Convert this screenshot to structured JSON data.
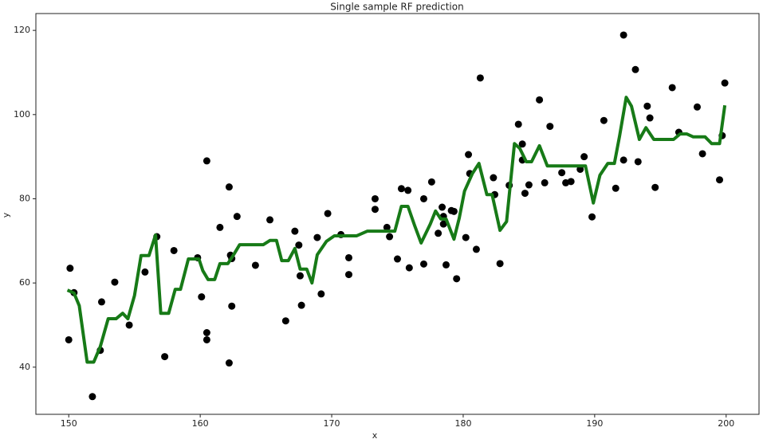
{
  "chart_data": {
    "type": "scatter",
    "title": "Single sample RF prediction",
    "x_label": "x",
    "y_label": "y",
    "xlim": [
      147.5,
      202.5
    ],
    "ylim": [
      28.8,
      124
    ],
    "xticks": [
      150,
      160,
      170,
      180,
      190,
      200
    ],
    "yticks": [
      40,
      60,
      80,
      100,
      120
    ],
    "grid": false,
    "series": [
      {
        "type": "scatter",
        "color": "#000000",
        "x": [
          150.1,
          150.0,
          150.4,
          151.8,
          152.5,
          152.4,
          153.5,
          154.6,
          155.8,
          156.7,
          157.3,
          158.0,
          159.8,
          160.1,
          160.5,
          160.5,
          160.5,
          161.5,
          162.2,
          162.3,
          162.4,
          162.4,
          162.2,
          162.8,
          164.2,
          165.3,
          166.5,
          167.2,
          167.5,
          167.6,
          167.7,
          168.9,
          169.2,
          169.7,
          170.7,
          171.3,
          171.3,
          173.3,
          173.3,
          174.2,
          174.4,
          175.0,
          175.3,
          175.8,
          175.9,
          177.0,
          177.0,
          177.6,
          178.1,
          178.4,
          178.5,
          178.5,
          178.7,
          179.1,
          179.3,
          179.5,
          180.2,
          180.4,
          180.5,
          181.0,
          181.3,
          182.3,
          182.4,
          182.8,
          183.5,
          184.2,
          184.5,
          184.5,
          184.7,
          185.0,
          185.8,
          186.2,
          186.6,
          187.5,
          187.8,
          188.2,
          188.9,
          189.2,
          189.8,
          190.7,
          191.6,
          192.2,
          192.2,
          193.1,
          193.3,
          194.0,
          194.2,
          194.6,
          195.9,
          196.4,
          197.8,
          198.2,
          199.5,
          199.7,
          199.9
        ],
        "values": [
          63.5,
          46.5,
          57.7,
          33,
          55.5,
          44,
          60.2,
          50,
          62.6,
          71,
          42.5,
          67.7,
          66,
          56.7,
          89,
          48.2,
          46.5,
          73.2,
          82.8,
          66.6,
          65.8,
          54.5,
          41,
          75.8,
          64.2,
          75,
          51,
          72.3,
          69,
          61.7,
          54.7,
          70.8,
          57.4,
          76.5,
          71.5,
          66,
          62,
          80,
          77.5,
          73.2,
          71,
          65.7,
          82.4,
          82,
          63.6,
          80,
          64.5,
          84,
          71.8,
          78,
          75.8,
          74,
          64.3,
          77.2,
          77,
          61,
          70.8,
          90.5,
          86,
          68,
          108.7,
          85,
          81,
          64.6,
          83.2,
          97.7,
          89.2,
          93,
          81.3,
          83.3,
          103.5,
          83.8,
          97.2,
          86.2,
          83.8,
          84.1,
          87,
          90,
          75.7,
          98.6,
          82.5,
          89.2,
          118.9,
          110.7,
          88.8,
          102,
          99.2,
          82.7,
          106.4,
          95.8,
          101.8,
          90.7,
          84.5,
          95,
          107.5
        ]
      },
      {
        "type": "line",
        "color": "#177a17",
        "x": [
          149.9,
          150.4,
          150.8,
          151.4,
          151.9,
          152.4,
          153.0,
          153.6,
          154.1,
          154.5,
          155.0,
          155.5,
          156.1,
          156.6,
          157.0,
          157.6,
          158.1,
          158.5,
          159.1,
          159.9,
          160.2,
          160.6,
          161.1,
          161.5,
          162.1,
          162.5,
          163.0,
          164.8,
          165.3,
          165.8,
          166.2,
          166.7,
          167.2,
          167.6,
          168.1,
          168.5,
          168.9,
          169.6,
          170.2,
          171.9,
          172.7,
          174.8,
          175.3,
          175.8,
          176.3,
          176.8,
          177.5,
          177.9,
          178.3,
          178.7,
          179.3,
          179.7,
          180.1,
          180.7,
          181.2,
          181.8,
          182.2,
          182.8,
          183.3,
          183.9,
          184.3,
          184.8,
          185.2,
          185.8,
          186.4,
          189.3,
          189.9,
          190.4,
          191.0,
          191.5,
          191.9,
          192.4,
          192.8,
          193.4,
          193.9,
          194.5,
          196.0,
          196.5,
          197.0,
          197.5,
          198.4,
          198.9,
          199.5,
          199.9
        ],
        "values": [
          58.3,
          57.6,
          54.6,
          41.2,
          41.2,
          44.9,
          51.5,
          51.5,
          52.8,
          51.5,
          57.0,
          66.5,
          66.5,
          71.4,
          52.8,
          52.8,
          58.5,
          58.5,
          65.7,
          65.7,
          62.9,
          60.8,
          60.8,
          64.6,
          64.6,
          66.5,
          69.1,
          69.1,
          70.1,
          70.1,
          65.3,
          65.3,
          68.2,
          63.3,
          63.3,
          60.0,
          66.7,
          69.9,
          71.2,
          71.2,
          72.3,
          72.3,
          78.2,
          78.2,
          73.7,
          69.5,
          74.0,
          77.1,
          75.2,
          75.2,
          70.4,
          75.4,
          81.8,
          86.0,
          88.4,
          81.0,
          81.0,
          72.5,
          74.6,
          93.1,
          92.0,
          88.8,
          88.8,
          92.6,
          87.8,
          87.8,
          79.0,
          85.6,
          88.4,
          88.4,
          95.0,
          104.1,
          102.0,
          94.1,
          96.9,
          94.1,
          94.1,
          95.4,
          95.4,
          94.7,
          94.7,
          93.1,
          93.1,
          102.2
        ]
      }
    ]
  }
}
